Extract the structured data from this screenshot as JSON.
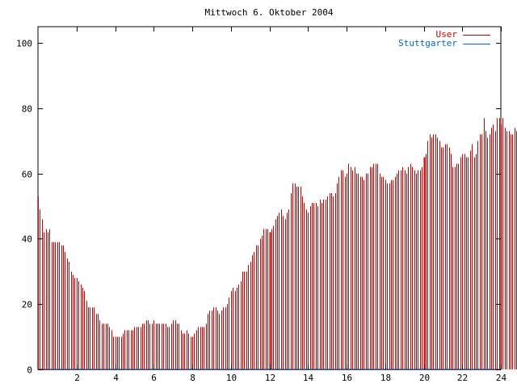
{
  "chart_data": {
    "type": "bar",
    "title": "Mittwoch 6. Oktober 2004",
    "xlabel": "",
    "ylabel": "",
    "xlim": [
      0,
      24
    ],
    "ylim": [
      0,
      105
    ],
    "x_ticks": [
      "2",
      "4",
      "6",
      "8",
      "10",
      "12",
      "14",
      "16",
      "18",
      "20",
      "22",
      "24"
    ],
    "x_tick_values": [
      2,
      4,
      6,
      8,
      10,
      12,
      14,
      16,
      18,
      20,
      22,
      24
    ],
    "y_ticks": [
      "0",
      "20",
      "40",
      "60",
      "80",
      "100"
    ],
    "y_tick_values": [
      0,
      20,
      40,
      60,
      80,
      100
    ],
    "grid": false,
    "legend_position": "top-right",
    "series": [
      {
        "name": "User",
        "color": "#cc0000",
        "x_start": 0,
        "x_step": 0.1,
        "values": [
          53,
          49,
          46,
          42,
          43,
          42,
          43,
          39,
          39,
          39,
          39,
          39,
          38,
          38,
          36,
          34,
          33,
          30,
          29,
          28,
          28,
          27,
          26,
          25,
          24,
          21,
          19,
          19,
          19,
          19,
          17,
          17,
          15,
          14,
          14,
          14,
          14,
          13,
          12,
          10,
          10,
          10,
          10,
          10,
          11,
          12,
          12,
          12,
          12,
          12,
          13,
          13,
          13,
          13,
          14,
          14,
          15,
          15,
          14,
          14,
          15,
          14,
          14,
          14,
          14,
          14,
          14,
          13,
          13,
          14,
          15,
          15,
          14,
          14,
          12,
          11,
          11,
          12,
          11,
          10,
          10,
          11,
          12,
          13,
          13,
          13,
          13,
          14,
          17,
          18,
          18,
          19,
          19,
          18,
          17,
          18,
          19,
          19,
          20,
          22,
          24,
          25,
          24,
          25,
          26,
          27,
          30,
          30,
          30,
          32,
          33,
          35,
          36,
          38,
          38,
          40,
          41,
          43,
          43,
          43,
          42,
          43,
          44,
          46,
          47,
          48,
          49,
          47,
          46,
          48,
          49,
          54,
          57,
          57,
          56,
          56,
          56,
          53,
          51,
          49,
          48,
          50,
          51,
          51,
          51,
          50,
          52,
          51,
          52,
          52,
          53,
          54,
          54,
          53,
          54,
          57,
          59,
          61,
          61,
          59,
          60,
          63,
          62,
          61,
          62,
          60,
          60,
          59,
          59,
          58,
          60,
          60,
          62,
          62,
          63,
          63,
          63,
          60,
          59,
          59,
          58,
          57,
          57,
          58,
          58,
          59,
          60,
          61,
          61,
          62,
          61,
          60,
          62,
          63,
          62,
          61,
          60,
          61,
          61,
          62,
          65,
          66,
          70,
          72,
          71,
          72,
          72,
          71,
          70,
          68,
          68,
          69,
          69,
          68,
          66,
          62,
          62,
          63,
          63,
          65,
          66,
          66,
          65,
          65,
          67,
          69,
          65,
          66,
          70,
          72,
          72,
          77,
          73,
          71,
          72,
          74,
          75,
          73,
          77,
          77,
          75,
          77,
          74,
          73,
          73,
          72,
          72,
          74,
          73,
          73,
          71,
          71,
          70,
          70,
          72,
          72,
          71,
          72,
          73,
          77,
          77,
          77,
          78,
          79,
          79,
          78,
          80,
          81,
          82,
          83,
          81,
          80,
          79,
          79,
          78,
          81,
          80,
          76,
          74,
          72,
          71,
          70,
          69,
          68,
          67,
          65,
          63,
          62,
          61
        ]
      },
      {
        "name": "Stuttgarter",
        "color": "#0066bb",
        "values": []
      }
    ],
    "highlight_bars": [
      12.0,
      20.0
    ]
  }
}
